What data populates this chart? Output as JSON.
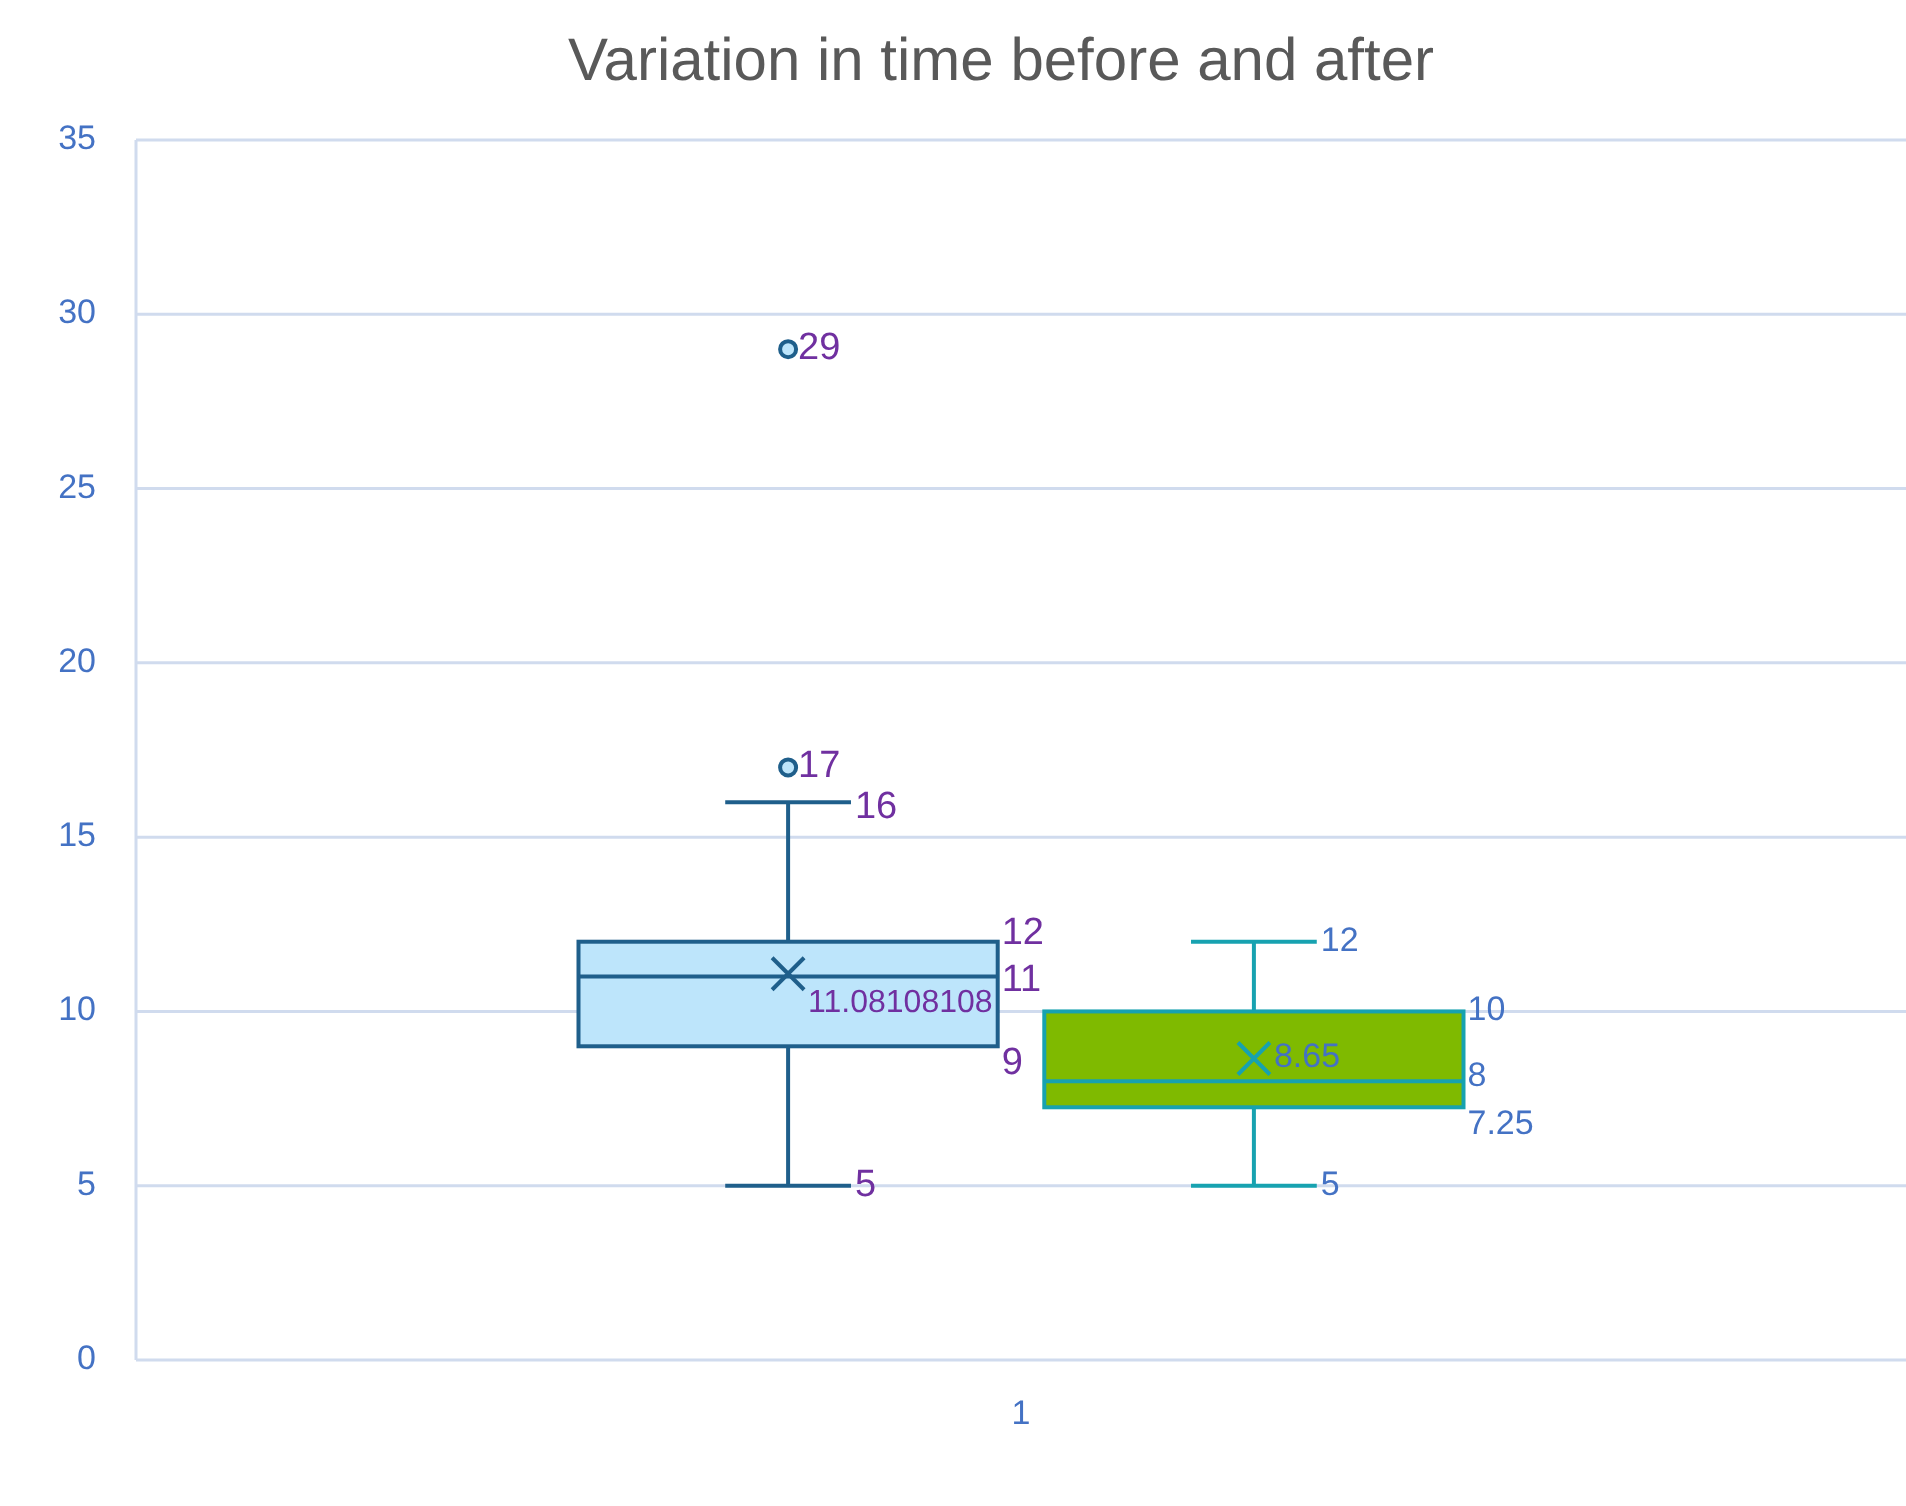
{
  "chart_data": {
    "type": "box",
    "title": "Variation in time before and after",
    "categories": [
      "1"
    ],
    "series": [
      {
        "color": "#bde5fb",
        "boxes": [
          {
            "low": 5,
            "q1": 9,
            "median": 11,
            "q3": 12,
            "high": 16,
            "mean": 11.08108108,
            "outliers": [
              17,
              29
            ]
          }
        ]
      },
      {
        "color": "#7fba00",
        "boxes": [
          {
            "low": 5,
            "q1": 7.25,
            "median": 8,
            "q3": 10,
            "high": 12,
            "mean": 8.65
          }
        ]
      }
    ],
    "annotations": [
      "17",
      "29",
      "16",
      "12",
      "11.08108108",
      "11",
      "9",
      "5",
      "12",
      "10",
      "8.65",
      "8",
      "7.25",
      "5"
    ],
    "ylim": [
      0,
      35
    ],
    "yticks": [
      0,
      5,
      10,
      15,
      20,
      25,
      30,
      35
    ],
    "grid": "y"
  }
}
